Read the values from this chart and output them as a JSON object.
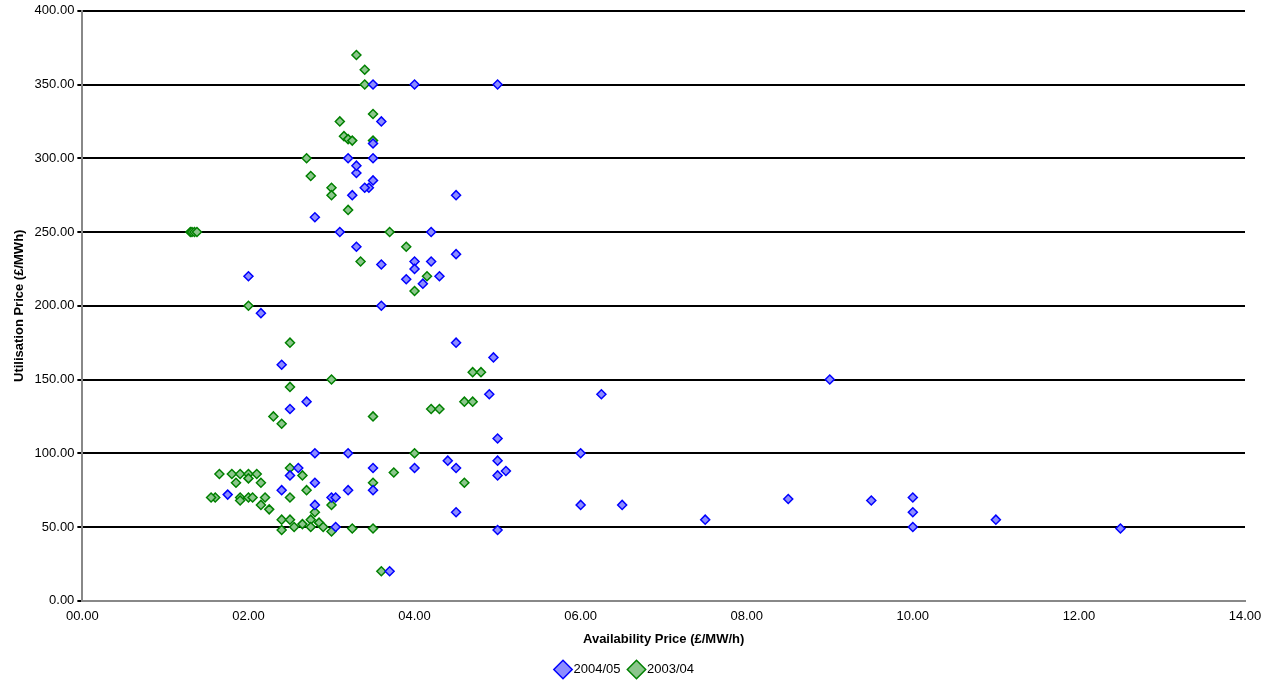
{
  "chart_data": {
    "type": "scatter",
    "xlabel": "Availability Price (£/MW/h)",
    "ylabel": "Utilisation Price (£/MWh)",
    "xlim": [
      0,
      14
    ],
    "xticks": [
      {
        "value": 0,
        "label": "00.00"
      },
      {
        "value": 2,
        "label": "02.00"
      },
      {
        "value": 4,
        "label": "04.00"
      },
      {
        "value": 6,
        "label": "06.00"
      },
      {
        "value": 8,
        "label": "08.00"
      },
      {
        "value": 10,
        "label": "10.00"
      },
      {
        "value": 12,
        "label": "12.00"
      },
      {
        "value": 14,
        "label": "14.00"
      }
    ],
    "ylim": [
      0,
      400
    ],
    "yticks": [
      {
        "value": 0,
        "label": "0.00"
      },
      {
        "value": 50,
        "label": "50.00"
      },
      {
        "value": 100,
        "label": "100.00"
      },
      {
        "value": 150,
        "label": "150.00"
      },
      {
        "value": 200,
        "label": "200.00"
      },
      {
        "value": 250,
        "label": "250.00"
      },
      {
        "value": 300,
        "label": "300.00"
      },
      {
        "value": 350,
        "label": "350.00"
      },
      {
        "value": 400,
        "label": "400.00"
      }
    ],
    "grid": "y",
    "legend": "bottom",
    "marker": "diamond",
    "series": [
      {
        "name": "2004/05",
        "color": "#0000ff",
        "x": [
          3.5,
          4.0,
          5.0,
          3.6,
          3.5,
          3.5,
          3.2,
          3.3,
          3.3,
          3.5,
          3.45,
          3.4,
          3.25,
          4.5,
          2.8,
          3.1,
          4.2,
          3.3,
          4.5,
          3.6,
          4.0,
          4.2,
          4.0,
          3.9,
          4.1,
          4.3,
          2.0,
          2.15,
          3.6,
          2.4,
          4.5,
          4.95,
          2.7,
          6.25,
          9.0,
          4.9,
          2.5,
          5.0,
          2.8,
          3.2,
          6.0,
          4.0,
          3.5,
          4.4,
          4.5,
          5.0,
          2.5,
          2.6,
          5.0,
          5.1,
          2.8,
          2.4,
          3.2,
          3.5,
          1.75,
          3.0,
          3.05,
          2.8,
          6.0,
          6.5,
          8.5,
          9.5,
          10.0,
          10.0,
          4.5,
          3.05,
          5.0,
          7.5,
          10.0,
          11.0,
          12.5,
          3.7
        ],
        "values": [
          350,
          350,
          350,
          325,
          310,
          300,
          300,
          290,
          295,
          285,
          280,
          280,
          275,
          275,
          260,
          250,
          250,
          240,
          235,
          228,
          230,
          230,
          225,
          218,
          215,
          220,
          220,
          195,
          200,
          160,
          175,
          165,
          135,
          140,
          150,
          140,
          130,
          110,
          100,
          100,
          100,
          90,
          90,
          95,
          90,
          95,
          85,
          90,
          85,
          88,
          80,
          75,
          75,
          75,
          72,
          70,
          70,
          65,
          65,
          65,
          69,
          68,
          70,
          60,
          60,
          50,
          48,
          55,
          50,
          55,
          49,
          20
        ]
      },
      {
        "name": "2003/04",
        "color": "#008000",
        "x": [
          3.3,
          3.4,
          3.4,
          3.5,
          3.1,
          3.15,
          3.2,
          3.25,
          3.5,
          2.7,
          2.75,
          3.0,
          3.0,
          3.2,
          1.3,
          1.32,
          1.35,
          1.38,
          3.7,
          3.9,
          3.35,
          4.15,
          4.0,
          2.0,
          2.5,
          2.5,
          3.0,
          2.3,
          2.4,
          3.5,
          4.7,
          4.8,
          4.2,
          4.3,
          4.6,
          4.7,
          4.0,
          2.5,
          2.65,
          1.65,
          1.8,
          1.9,
          2.0,
          2.1,
          2.0,
          2.15,
          1.85,
          1.6,
          1.55,
          1.9,
          2.0,
          2.05,
          2.2,
          1.9,
          2.15,
          2.25,
          2.5,
          2.7,
          2.8,
          2.85,
          2.75,
          2.65,
          2.4,
          2.4,
          2.55,
          2.75,
          2.9,
          3.0,
          3.25,
          3.5,
          3.0,
          3.5,
          3.75,
          4.6,
          3.6,
          2.5
        ],
        "values": [
          370,
          360,
          350,
          330,
          325,
          315,
          313,
          312,
          312,
          300,
          288,
          280,
          275,
          265,
          250,
          250,
          250,
          250,
          250,
          240,
          230,
          220,
          210,
          200,
          175,
          145,
          150,
          125,
          120,
          125,
          155,
          155,
          130,
          130,
          135,
          135,
          100,
          90,
          85,
          86,
          86,
          86,
          86,
          86,
          83,
          80,
          80,
          70,
          70,
          70,
          70,
          70,
          70,
          68,
          65,
          62,
          70,
          75,
          60,
          53,
          55,
          52,
          55,
          48,
          50,
          50,
          50,
          47,
          49,
          49,
          65,
          80,
          87,
          80,
          20,
          55
        ]
      }
    ]
  }
}
